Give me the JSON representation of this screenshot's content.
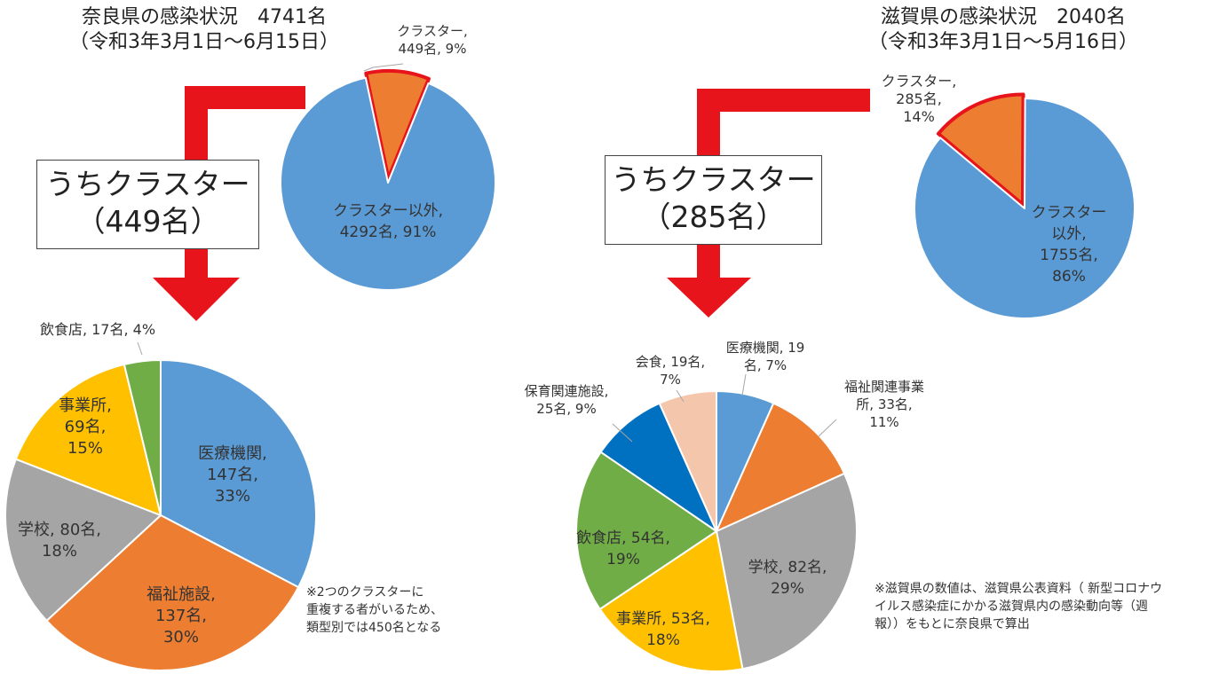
{
  "colors": {
    "arrow": "#e8141c",
    "blue": "#5b9bd5",
    "orange": "#ed7d31",
    "gray": "#a5a5a5",
    "yellow": "#ffc000",
    "green": "#70ad47",
    "darkblue": "#0070c0",
    "peach": "#f4c7ac",
    "highlight": "#e8141c"
  },
  "nara": {
    "title_line1": "奈良県の感染状況　4741名",
    "title_line2": "（令和3年3月1日～6月15日）",
    "callout_line1": "うちクラスター",
    "callout_line2": "（449名）",
    "note_line1": "※2つのクラスターに",
    "note_line2": "重複する者がいるため、",
    "note_line3": "類型別では450名となる"
  },
  "shiga": {
    "title_line1": "滋賀県の感染状況　2040名",
    "title_line2": "（令和3年3月1日～5月16日）",
    "callout_line1": "うちクラスター",
    "callout_line2": "（285名）",
    "note_line1": "※滋賀県の数値は、滋賀県公表資料（ 新型コロナウ",
    "note_line2": "イルス感染症にかかる滋賀県内の感染動向等（週",
    "note_line3": "報））をもとに奈良県で算出"
  },
  "chart_data": [
    {
      "type": "pie",
      "title": "奈良県の感染状況 4741名",
      "start_deg": -12,
      "categories": [
        "クラスター",
        "クラスター以外"
      ],
      "values": [
        449,
        4292
      ],
      "percent": [
        9,
        91
      ],
      "colors": [
        "#ed7d31",
        "#5b9bd5"
      ],
      "labels": [
        [
          "クラスター,",
          "449名, 9%"
        ],
        [
          "クラスター以外,",
          "4292名, 91%"
        ]
      ]
    },
    {
      "type": "pie",
      "title": "うちクラスター（449名）",
      "start_deg": 0,
      "categories": [
        "医療機関",
        "福祉施設",
        "学校",
        "事業所",
        "飲食店"
      ],
      "values": [
        147,
        137,
        80,
        69,
        17
      ],
      "percent": [
        33,
        30,
        18,
        15,
        4
      ],
      "colors": [
        "#5b9bd5",
        "#ed7d31",
        "#a5a5a5",
        "#ffc000",
        "#70ad47"
      ],
      "labels": [
        [
          "医療機関,",
          "147名,",
          "33%"
        ],
        [
          "福祉施設,",
          "137名,",
          "30%"
        ],
        [
          "学校, 80名,",
          "18%"
        ],
        [
          "事業所,",
          "69名,",
          "15%"
        ],
        [
          "飲食店, 17名, 4%"
        ]
      ]
    },
    {
      "type": "pie",
      "title": "滋賀県の感染状況 2040名",
      "start_deg": -50,
      "categories": [
        "クラスター",
        "クラスター以外"
      ],
      "values": [
        285,
        1755
      ],
      "percent": [
        14,
        86
      ],
      "colors": [
        "#ed7d31",
        "#5b9bd5"
      ],
      "labels": [
        [
          "クラスター,",
          "285名,",
          "14%"
        ],
        [
          "クラスター",
          "以外,",
          "1755名,",
          "86%"
        ]
      ]
    },
    {
      "type": "pie",
      "title": "うちクラスター（285名）",
      "start_deg": 0,
      "categories": [
        "医療機関",
        "福祉関連事業所",
        "学校",
        "事業所",
        "飲食店",
        "保育関連施設",
        "会食"
      ],
      "values": [
        19,
        33,
        82,
        53,
        54,
        25,
        19
      ],
      "percent": [
        7,
        11,
        29,
        18,
        19,
        9,
        7
      ],
      "colors": [
        "#5b9bd5",
        "#ed7d31",
        "#a5a5a5",
        "#ffc000",
        "#70ad47",
        "#0070c0",
        "#f4c7ac"
      ],
      "labels": [
        [
          "医療機関, 19",
          "名, 7%"
        ],
        [
          "福祉関連事業",
          "所, 33名,",
          "11%"
        ],
        [
          "学校, 82名,",
          "29%"
        ],
        [
          "事業所, 53名,",
          "18%"
        ],
        [
          "飲食店, 54名,",
          "19%"
        ],
        [
          "保育関連施設,",
          "25名, 9%"
        ],
        [
          "会食, 19名,",
          "7%"
        ]
      ]
    }
  ]
}
